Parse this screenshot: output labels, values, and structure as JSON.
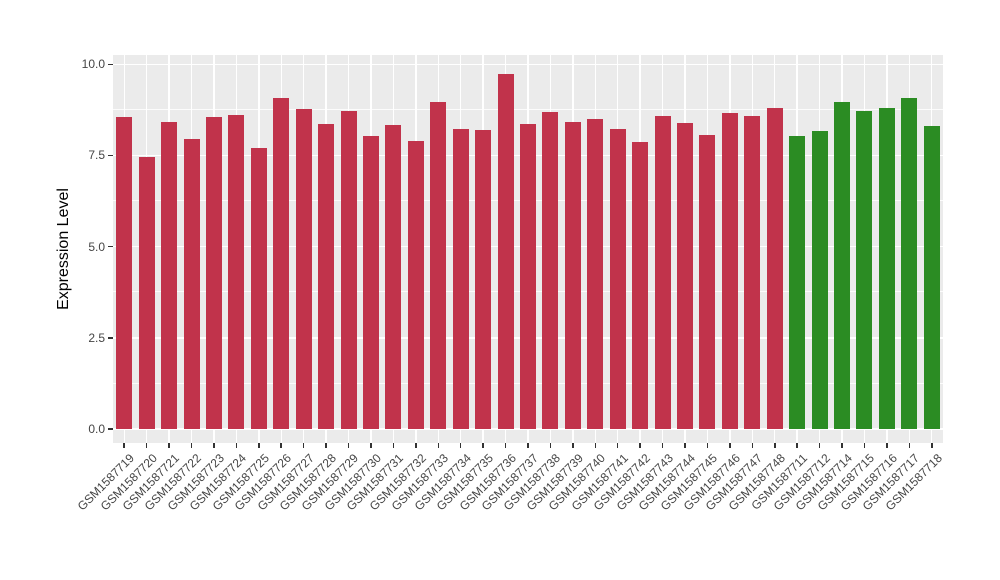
{
  "figure": {
    "background": "#FFFFFF",
    "panel_background": "#EBEBEB",
    "gridline_color": "#FFFFFF",
    "tick_color": "#333333",
    "axis_text_color": "#454545",
    "axis_title_color": "#000000"
  },
  "chart_data": {
    "type": "bar",
    "title": "",
    "xlabel": "",
    "ylabel": "Expression Level",
    "ylim": [
      0,
      10.25
    ],
    "yticks": [
      "0.0",
      "2.5",
      "5.0",
      "7.5",
      "10.0"
    ],
    "ytick_values": [
      0,
      2.5,
      5,
      7.5,
      10
    ],
    "yminor_values": [
      1.25,
      3.75,
      6.25,
      8.75
    ],
    "grid": "on",
    "legend_position": "none",
    "group_colors": {
      "red": "#C1334B",
      "green": "#2B8C23"
    },
    "bars": [
      {
        "label": "GSM1587719",
        "value": 8.56,
        "group": "red"
      },
      {
        "label": "GSM1587720",
        "value": 7.45,
        "group": "red"
      },
      {
        "label": "GSM1587721",
        "value": 8.43,
        "group": "red"
      },
      {
        "label": "GSM1587722",
        "value": 7.95,
        "group": "red"
      },
      {
        "label": "GSM1587723",
        "value": 8.55,
        "group": "red"
      },
      {
        "label": "GSM1587724",
        "value": 8.6,
        "group": "red"
      },
      {
        "label": "GSM1587725",
        "value": 7.71,
        "group": "red"
      },
      {
        "label": "GSM1587726",
        "value": 9.07,
        "group": "red"
      },
      {
        "label": "GSM1587727",
        "value": 8.77,
        "group": "red"
      },
      {
        "label": "GSM1587728",
        "value": 8.36,
        "group": "red"
      },
      {
        "label": "GSM1587729",
        "value": 8.72,
        "group": "red"
      },
      {
        "label": "GSM1587730",
        "value": 8.03,
        "group": "red"
      },
      {
        "label": "GSM1587731",
        "value": 8.34,
        "group": "red"
      },
      {
        "label": "GSM1587732",
        "value": 7.9,
        "group": "red"
      },
      {
        "label": "GSM1587733",
        "value": 8.96,
        "group": "red"
      },
      {
        "label": "GSM1587734",
        "value": 8.23,
        "group": "red"
      },
      {
        "label": "GSM1587735",
        "value": 8.2,
        "group": "red"
      },
      {
        "label": "GSM1587736",
        "value": 9.73,
        "group": "red"
      },
      {
        "label": "GSM1587737",
        "value": 8.36,
        "group": "red"
      },
      {
        "label": "GSM1587738",
        "value": 8.68,
        "group": "red"
      },
      {
        "label": "GSM1587739",
        "value": 8.43,
        "group": "red"
      },
      {
        "label": "GSM1587740",
        "value": 8.49,
        "group": "red"
      },
      {
        "label": "GSM1587741",
        "value": 8.23,
        "group": "red"
      },
      {
        "label": "GSM1587742",
        "value": 7.88,
        "group": "red"
      },
      {
        "label": "GSM1587743",
        "value": 8.59,
        "group": "red"
      },
      {
        "label": "GSM1587744",
        "value": 8.4,
        "group": "red"
      },
      {
        "label": "GSM1587745",
        "value": 8.06,
        "group": "red"
      },
      {
        "label": "GSM1587746",
        "value": 8.66,
        "group": "red"
      },
      {
        "label": "GSM1587747",
        "value": 8.58,
        "group": "red"
      },
      {
        "label": "GSM1587748",
        "value": 8.79,
        "group": "red"
      },
      {
        "label": "GSM1587711",
        "value": 8.03,
        "group": "green"
      },
      {
        "label": "GSM1587712",
        "value": 8.17,
        "group": "green"
      },
      {
        "label": "GSM1587714",
        "value": 8.98,
        "group": "green"
      },
      {
        "label": "GSM1587715",
        "value": 8.72,
        "group": "green"
      },
      {
        "label": "GSM1587716",
        "value": 8.79,
        "group": "green"
      },
      {
        "label": "GSM1587717",
        "value": 9.09,
        "group": "green"
      },
      {
        "label": "GSM1587718",
        "value": 8.32,
        "group": "green"
      }
    ]
  }
}
